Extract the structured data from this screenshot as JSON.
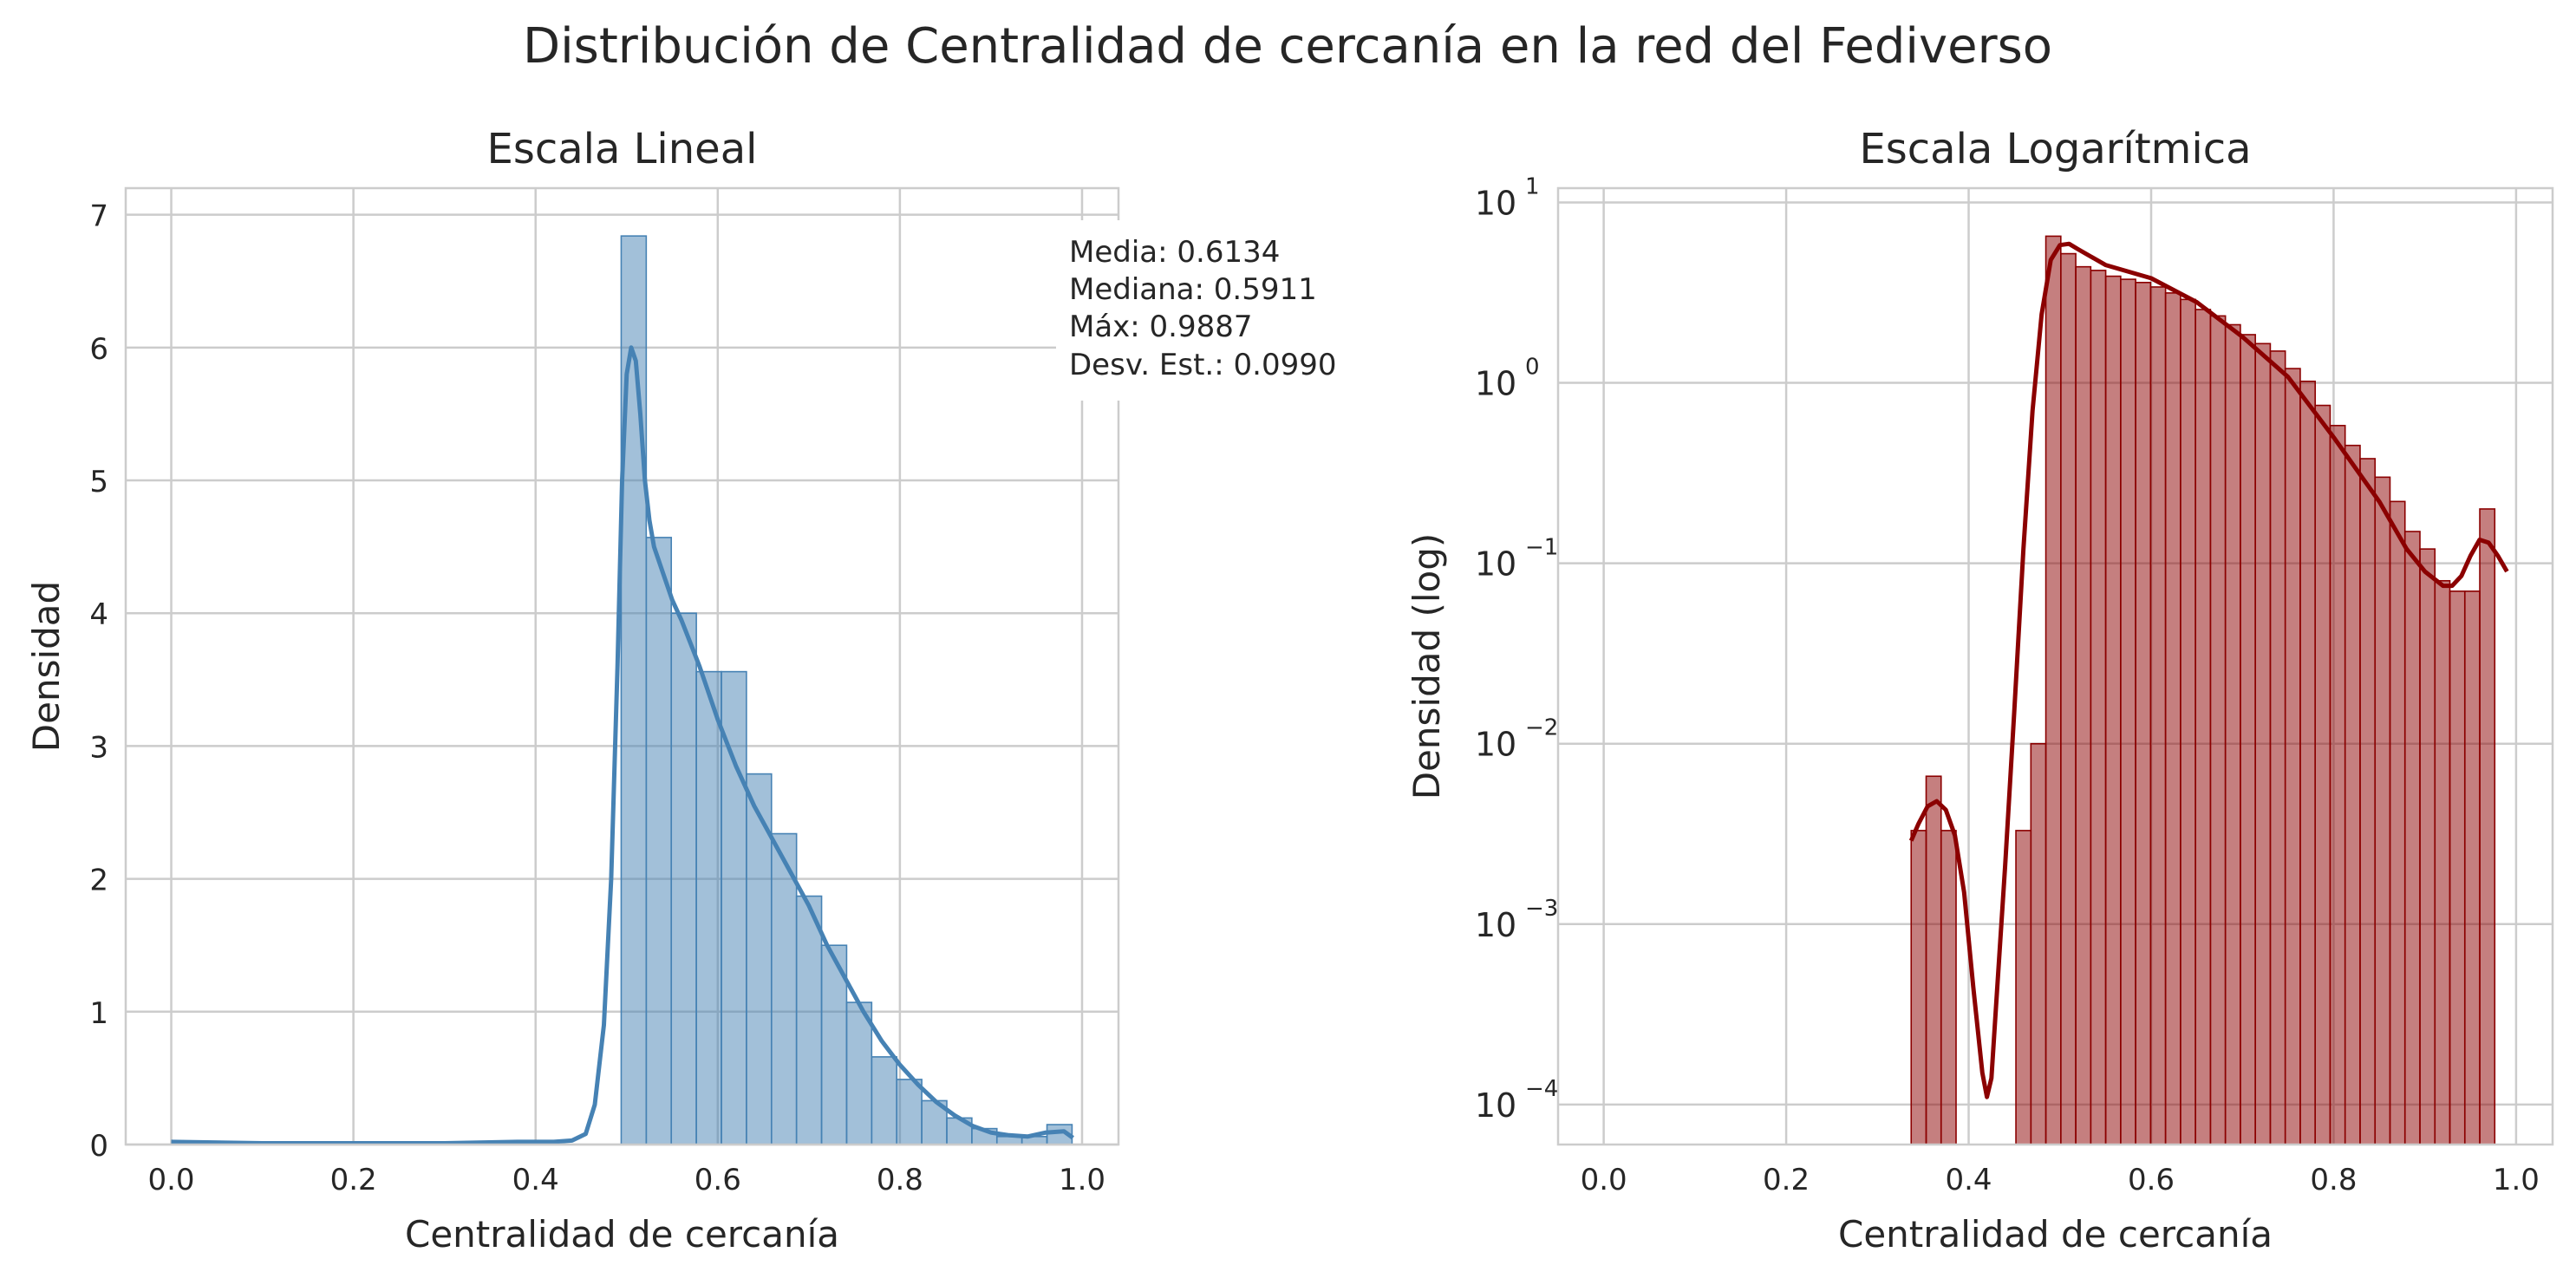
{
  "figure": {
    "title": "Distribución de Centralidad de cercanía en la red del Fediverso"
  },
  "chart_data": [
    {
      "type": "histogram",
      "title": "Escala Lineal",
      "xlabel": "Centralidad de cercanía",
      "ylabel": "Densidad",
      "xlim": [
        -0.05,
        1.04
      ],
      "ylim": [
        0,
        7.2
      ],
      "xticks": [
        0.0,
        0.2,
        0.4,
        0.6,
        0.8,
        1.0
      ],
      "xtick_labels": [
        "0.0",
        "0.2",
        "0.4",
        "0.6",
        "0.8",
        "1.0"
      ],
      "yticks": [
        0,
        1,
        2,
        3,
        4,
        5,
        6,
        7
      ],
      "ytick_labels": [
        "0",
        "1",
        "2",
        "3",
        "4",
        "5",
        "6",
        "7"
      ],
      "grid": true,
      "color": "#4682b4",
      "bin_width": 0.0275,
      "bins": [
        {
          "x0": 0.494,
          "value": 6.84
        },
        {
          "x0": 0.5215,
          "value": 4.57
        },
        {
          "x0": 0.549,
          "value": 4.0
        },
        {
          "x0": 0.5765,
          "value": 3.56
        },
        {
          "x0": 0.604,
          "value": 3.56
        },
        {
          "x0": 0.6315,
          "value": 2.79
        },
        {
          "x0": 0.659,
          "value": 2.34
        },
        {
          "x0": 0.6865,
          "value": 1.87
        },
        {
          "x0": 0.714,
          "value": 1.5
        },
        {
          "x0": 0.7415,
          "value": 1.07
        },
        {
          "x0": 0.769,
          "value": 0.66
        },
        {
          "x0": 0.7965,
          "value": 0.49
        },
        {
          "x0": 0.824,
          "value": 0.33
        },
        {
          "x0": 0.8515,
          "value": 0.2
        },
        {
          "x0": 0.879,
          "value": 0.12
        },
        {
          "x0": 0.9065,
          "value": 0.06
        },
        {
          "x0": 0.934,
          "value": 0.06
        },
        {
          "x0": 0.9615,
          "value": 0.15
        }
      ],
      "kde": {
        "x": [
          0.0,
          0.1,
          0.2,
          0.3,
          0.38,
          0.42,
          0.44,
          0.455,
          0.465,
          0.475,
          0.483,
          0.49,
          0.495,
          0.5,
          0.505,
          0.51,
          0.515,
          0.52,
          0.525,
          0.53,
          0.54,
          0.55,
          0.56,
          0.58,
          0.6,
          0.62,
          0.64,
          0.66,
          0.68,
          0.7,
          0.72,
          0.74,
          0.76,
          0.78,
          0.8,
          0.82,
          0.84,
          0.86,
          0.88,
          0.9,
          0.92,
          0.94,
          0.96,
          0.98,
          0.99
        ],
        "y": [
          0.02,
          0.01,
          0.01,
          0.01,
          0.02,
          0.02,
          0.03,
          0.08,
          0.3,
          0.9,
          2.0,
          3.6,
          5.0,
          5.8,
          6.0,
          5.9,
          5.5,
          5.0,
          4.7,
          4.5,
          4.3,
          4.1,
          3.95,
          3.6,
          3.2,
          2.85,
          2.55,
          2.3,
          2.05,
          1.8,
          1.5,
          1.25,
          1.0,
          0.78,
          0.6,
          0.45,
          0.32,
          0.22,
          0.14,
          0.09,
          0.07,
          0.06,
          0.09,
          0.1,
          0.05
        ]
      },
      "annotation": {
        "lines": [
          "Media: 0.6134",
          "Mediana: 0.5911",
          "Máx: 0.9887",
          "Desv. Est.: 0.0990"
        ]
      }
    },
    {
      "type": "histogram",
      "title": "Escala Logarítmica",
      "xlabel": "Centralidad de cercanía",
      "ylabel": "Densidad (log)",
      "yscale": "log",
      "xlim": [
        -0.05,
        1.04
      ],
      "ylim": [
        6e-05,
        12
      ],
      "xticks": [
        0.0,
        0.2,
        0.4,
        0.6,
        0.8,
        1.0
      ],
      "xtick_labels": [
        "0.0",
        "0.2",
        "0.4",
        "0.6",
        "0.8",
        "1.0"
      ],
      "yticks": [
        0.0001,
        0.001,
        0.01,
        0.1,
        1,
        10
      ],
      "ytick_labels": [
        {
          "base": "10",
          "exp": "−4"
        },
        {
          "base": "10",
          "exp": "−3"
        },
        {
          "base": "10",
          "exp": "−2"
        },
        {
          "base": "10",
          "exp": "−1"
        },
        {
          "base": "10",
          "exp": "0"
        },
        {
          "base": "10",
          "exp": "1"
        }
      ],
      "grid": true,
      "color": "#8b0000",
      "bin_width": 0.0164,
      "bins": [
        {
          "x0": 0.337,
          "value": 0.0033
        },
        {
          "x0": 0.3534,
          "value": 0.0066
        },
        {
          "x0": 0.3698,
          "value": 0.0033
        },
        {
          "x0": 0.4026,
          "value": 0.0
        },
        {
          "x0": 0.419,
          "value": 0.0
        },
        {
          "x0": 0.4354,
          "value": 0.0
        },
        {
          "x0": 0.4518,
          "value": 0.0033
        },
        {
          "x0": 0.4682,
          "value": 0.01
        },
        {
          "x0": 0.4846,
          "value": 6.5
        },
        {
          "x0": 0.501,
          "value": 5.2
        },
        {
          "x0": 0.5174,
          "value": 4.4
        },
        {
          "x0": 0.5338,
          "value": 4.2
        },
        {
          "x0": 0.5502,
          "value": 3.9
        },
        {
          "x0": 0.5666,
          "value": 3.75
        },
        {
          "x0": 0.583,
          "value": 3.6
        },
        {
          "x0": 0.5994,
          "value": 3.4
        },
        {
          "x0": 0.6158,
          "value": 3.15
        },
        {
          "x0": 0.6322,
          "value": 2.9
        },
        {
          "x0": 0.6486,
          "value": 2.55
        },
        {
          "x0": 0.665,
          "value": 2.35
        },
        {
          "x0": 0.6814,
          "value": 2.1
        },
        {
          "x0": 0.6978,
          "value": 1.85
        },
        {
          "x0": 0.7142,
          "value": 1.65
        },
        {
          "x0": 0.7306,
          "value": 1.5
        },
        {
          "x0": 0.747,
          "value": 1.2
        },
        {
          "x0": 0.7634,
          "value": 1.02
        },
        {
          "x0": 0.7798,
          "value": 0.75
        },
        {
          "x0": 0.7962,
          "value": 0.58
        },
        {
          "x0": 0.8126,
          "value": 0.45
        },
        {
          "x0": 0.829,
          "value": 0.38
        },
        {
          "x0": 0.8454,
          "value": 0.3
        },
        {
          "x0": 0.8618,
          "value": 0.22
        },
        {
          "x0": 0.8782,
          "value": 0.15
        },
        {
          "x0": 0.8946,
          "value": 0.12
        },
        {
          "x0": 0.911,
          "value": 0.08
        },
        {
          "x0": 0.9274,
          "value": 0.07
        },
        {
          "x0": 0.9438,
          "value": 0.07
        },
        {
          "x0": 0.9602,
          "value": 0.2
        }
      ],
      "kde": {
        "x": [
          0.337,
          0.345,
          0.355,
          0.365,
          0.375,
          0.385,
          0.395,
          0.405,
          0.415,
          0.42,
          0.425,
          0.43,
          0.44,
          0.45,
          0.46,
          0.47,
          0.48,
          0.49,
          0.5,
          0.51,
          0.52,
          0.55,
          0.6,
          0.65,
          0.7,
          0.75,
          0.8,
          0.85,
          0.88,
          0.9,
          0.92,
          0.93,
          0.94,
          0.95,
          0.96,
          0.97,
          0.98,
          0.99
        ],
        "y": [
          0.0029,
          0.0036,
          0.0045,
          0.0048,
          0.0043,
          0.0031,
          0.0015,
          0.00045,
          0.00015,
          0.00011,
          0.00014,
          0.00035,
          0.0021,
          0.015,
          0.12,
          0.7,
          2.4,
          4.8,
          5.8,
          5.9,
          5.5,
          4.5,
          3.8,
          2.8,
          1.8,
          1.08,
          0.5,
          0.22,
          0.12,
          0.09,
          0.075,
          0.075,
          0.085,
          0.11,
          0.135,
          0.13,
          0.11,
          0.09
        ]
      }
    }
  ]
}
